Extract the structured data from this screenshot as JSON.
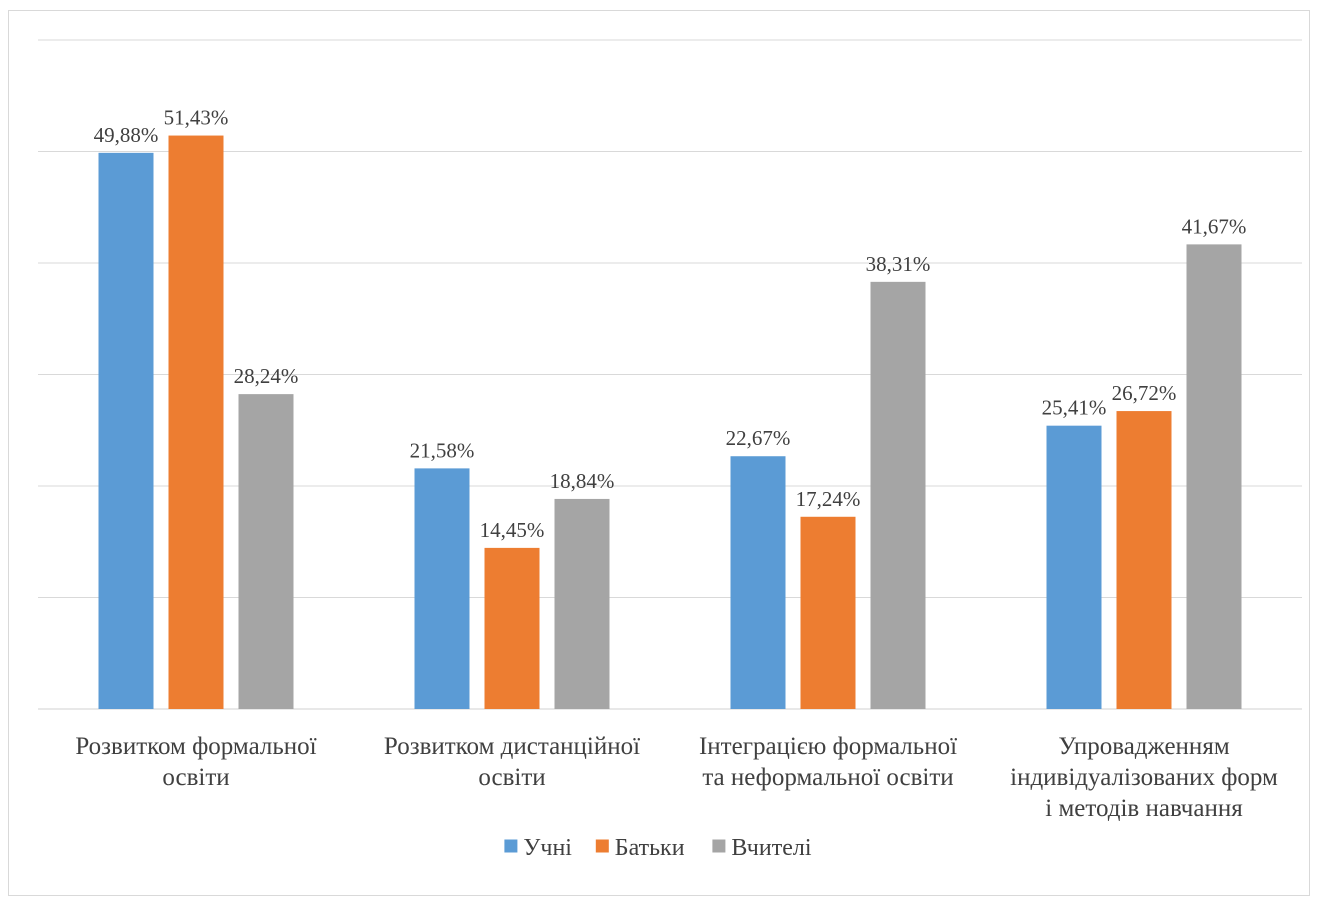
{
  "chart_data": {
    "type": "bar",
    "title": "",
    "xlabel": "",
    "ylabel": "",
    "ylim": [
      0,
      60
    ],
    "grid": true,
    "legend_position": "bottom",
    "categories": [
      [
        "Розвитком формальної",
        "освіти"
      ],
      [
        "Розвитком дистанційної",
        "освіти"
      ],
      [
        "Інтеграцією формальної",
        "та неформальної освіти"
      ],
      [
        "Упровадженням",
        "індивідуалізованих форм",
        "і методів навчання"
      ]
    ],
    "series": [
      {
        "name": "Учні",
        "color": "#5b9bd5",
        "values": [
          49.88,
          21.58,
          22.67,
          25.41
        ],
        "labels": [
          "49,88%",
          "21,58%",
          "22,67%",
          "25,41%"
        ]
      },
      {
        "name": "Батьки",
        "color": "#ed7d31",
        "values": [
          51.43,
          14.45,
          17.24,
          26.72
        ],
        "labels": [
          "51,43%",
          "14,45%",
          "17,24%",
          "26,72%"
        ]
      },
      {
        "name": "Вчителі",
        "color": "#a5a5a5",
        "values": [
          28.24,
          18.84,
          38.31,
          41.67
        ],
        "labels": [
          "28,24%",
          "18,84%",
          "38,31%",
          "41,67%"
        ]
      }
    ]
  }
}
